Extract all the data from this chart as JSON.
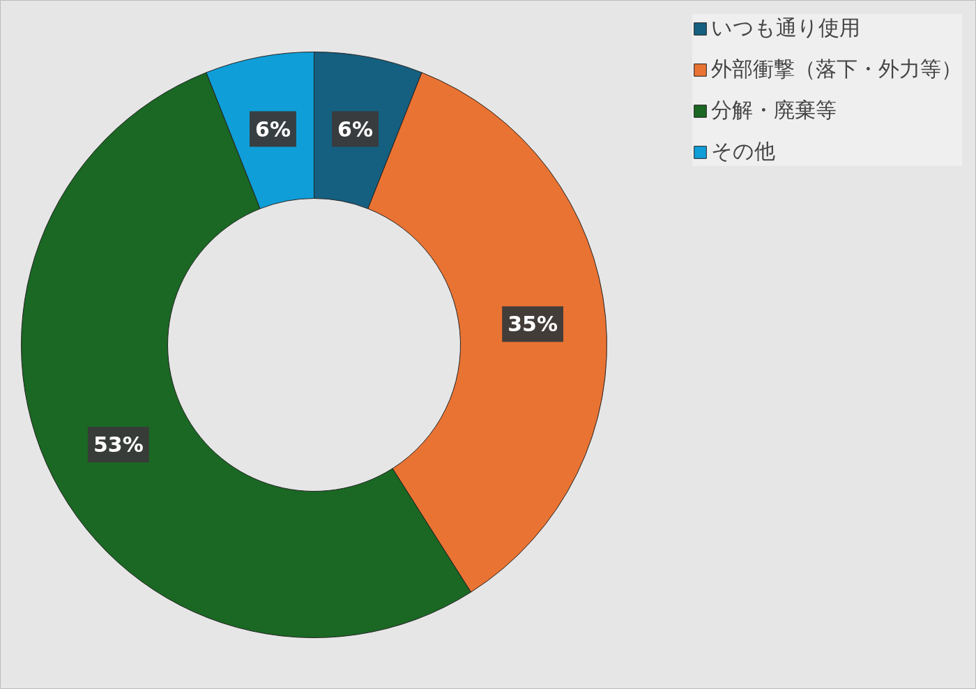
{
  "chart_data": {
    "type": "donut",
    "categories": [
      "いつも通り使用",
      "外部衝撃（落下・外力等）",
      "分解・廃棄等",
      "その他"
    ],
    "values": [
      6,
      35,
      53,
      6
    ],
    "colors": [
      "#155f80",
      "#e97333",
      "#1a6823",
      "#0f9ed8"
    ],
    "value_labels": [
      "6%",
      "35%",
      "53%",
      "6%"
    ],
    "legend": "top right"
  }
}
